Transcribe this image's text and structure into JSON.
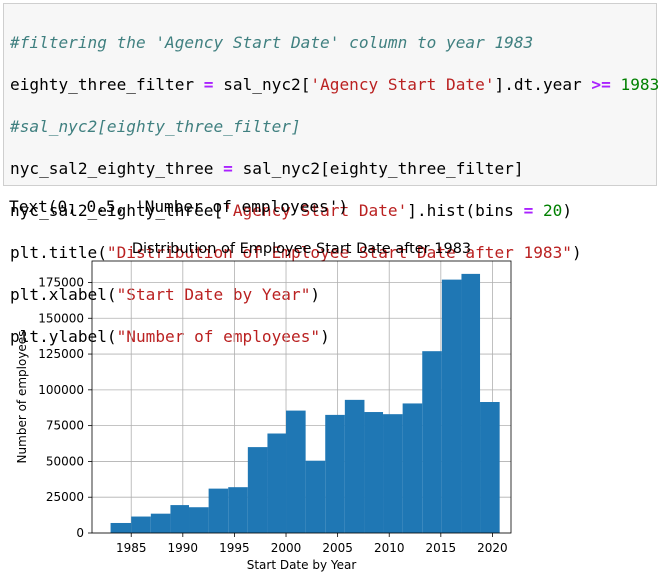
{
  "code": {
    "line1_comment": "#filtering the 'Agency Start Date' column to year 1983",
    "line2_a": "eighty_three_filter ",
    "line2_eq": "=",
    "line2_b": " sal_nyc2[",
    "line2_str": "'Agency Start Date'",
    "line2_c": "].dt.year ",
    "line2_op": ">=",
    "line2_d": " ",
    "line2_num": "1983",
    "line3_comment": "#sal_nyc2[eighty_three_filter]",
    "line4_a": "nyc_sal2_eighty_three ",
    "line4_eq": "=",
    "line4_b": " sal_nyc2[eighty_three_filter]",
    "line5_a": "nyc_sal2_eighty_three[",
    "line5_str": "'Agency Start Date'",
    "line5_b": "].hist(bins ",
    "line5_eq": "=",
    "line5_c": " ",
    "line5_num": "20",
    "line5_d": ")",
    "line6_a": "plt.title(",
    "line6_str": "\"Distribution of Employee Start Date after 1983\"",
    "line6_b": ")",
    "line7_a": "plt.xlabel(",
    "line7_str": "\"Start Date by Year\"",
    "line7_b": ")",
    "line8_a": "plt.ylabel(",
    "line8_str": "\"Number of employees\"",
    "line8_b": ")"
  },
  "output_text": "Text(0, 0.5, 'Number of employees')",
  "chart_data": {
    "type": "bar",
    "title": "Distribution of Employee Start Date after 1983",
    "xlabel": "Start Date by Year",
    "ylabel": "Number of employees",
    "xlim": [
      1981.2,
      2021.8
    ],
    "ylim": [
      0,
      190000
    ],
    "xticks": [
      1985,
      1990,
      1995,
      2000,
      2005,
      2010,
      2015,
      2020
    ],
    "yticks": [
      0,
      25000,
      50000,
      75000,
      100000,
      125000,
      150000,
      175000
    ],
    "grid": true,
    "bar_color": "#1f77b4",
    "bins": [
      {
        "x0": 1983.0,
        "x1": 1985.0,
        "value": 7000
      },
      {
        "x0": 1985.0,
        "x1": 1986.9,
        "value": 11500
      },
      {
        "x0": 1986.9,
        "x1": 1988.8,
        "value": 13500
      },
      {
        "x0": 1988.8,
        "x1": 1990.6,
        "value": 19500
      },
      {
        "x0": 1990.6,
        "x1": 1992.5,
        "value": 18000
      },
      {
        "x0": 1992.5,
        "x1": 1994.4,
        "value": 31000
      },
      {
        "x0": 1994.4,
        "x1": 1996.3,
        "value": 32000
      },
      {
        "x0": 1996.3,
        "x1": 1998.2,
        "value": 60000
      },
      {
        "x0": 1998.2,
        "x1": 2000.0,
        "value": 69500
      },
      {
        "x0": 2000.0,
        "x1": 2001.9,
        "value": 85500
      },
      {
        "x0": 2001.9,
        "x1": 2003.8,
        "value": 50500
      },
      {
        "x0": 2003.8,
        "x1": 2005.7,
        "value": 82500
      },
      {
        "x0": 2005.7,
        "x1": 2007.6,
        "value": 93000
      },
      {
        "x0": 2007.6,
        "x1": 2009.4,
        "value": 84500
      },
      {
        "x0": 2009.4,
        "x1": 2011.3,
        "value": 83000
      },
      {
        "x0": 2011.3,
        "x1": 2013.2,
        "value": 90500
      },
      {
        "x0": 2013.2,
        "x1": 2015.1,
        "value": 127000
      },
      {
        "x0": 2015.1,
        "x1": 2017.0,
        "value": 177000
      },
      {
        "x0": 2017.0,
        "x1": 2018.8,
        "value": 181000
      },
      {
        "x0": 2018.8,
        "x1": 2020.7,
        "value": 91500
      }
    ]
  }
}
